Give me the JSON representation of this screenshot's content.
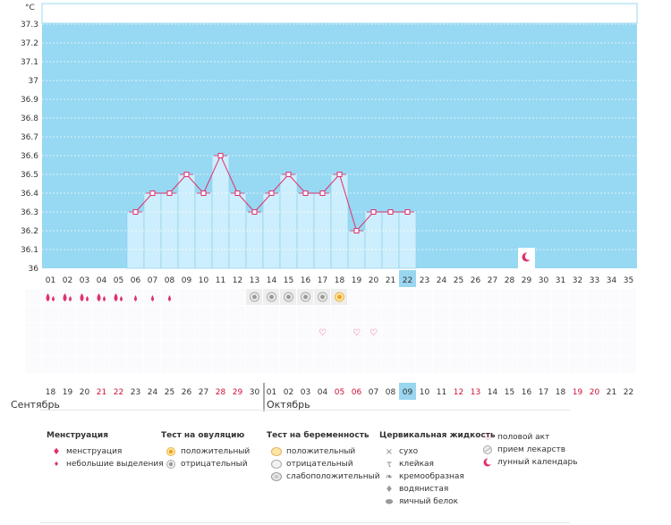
{
  "chart_data": {
    "type": "bar",
    "unit_label": "°C",
    "ylim": [
      36,
      37.35
    ],
    "yticks": [
      36,
      36.1,
      36.2,
      36.3,
      36.4,
      36.5,
      36.6,
      36.7,
      36.8,
      36.9,
      37,
      37.1,
      37.2,
      37.3
    ],
    "cycle_days": [
      "01",
      "02",
      "03",
      "04",
      "05",
      "06",
      "07",
      "08",
      "09",
      "10",
      "11",
      "12",
      "13",
      "14",
      "15",
      "16",
      "17",
      "18",
      "19",
      "20",
      "21",
      "22",
      "23",
      "24",
      "25",
      "26",
      "27",
      "28",
      "29",
      "30",
      "31",
      "32",
      "33",
      "34",
      "35"
    ],
    "dates": [
      "18",
      "19",
      "20",
      "21",
      "22",
      "23",
      "24",
      "25",
      "26",
      "27",
      "28",
      "29",
      "30",
      "01",
      "02",
      "03",
      "04",
      "05",
      "06",
      "07",
      "08",
      "09",
      "10",
      "11",
      "12",
      "13",
      "14",
      "15",
      "16",
      "17",
      "18",
      "19",
      "20",
      "21",
      "22"
    ],
    "weekend_dates_index": [
      3,
      4,
      10,
      11,
      17,
      18,
      24,
      25,
      31,
      32
    ],
    "current_day_index": 21,
    "temperatures": [
      null,
      null,
      null,
      null,
      null,
      36.3,
      36.4,
      36.4,
      36.5,
      36.4,
      36.6,
      36.4,
      36.3,
      36.4,
      36.5,
      36.4,
      36.4,
      36.5,
      36.2,
      36.3,
      36.3,
      36.3,
      null,
      null,
      null,
      null,
      null,
      null,
      null,
      null,
      null,
      null,
      null,
      null,
      null
    ],
    "moon_day_index": 28,
    "menstruation_heavy_index": [
      0,
      1,
      2,
      3,
      4
    ],
    "menstruation_light_index": [
      5,
      6,
      7
    ],
    "ovulation_negative_index": [
      12,
      13,
      14,
      15,
      16
    ],
    "ovulation_positive_index": [
      17
    ],
    "intercourse_index": [
      16,
      18,
      19
    ]
  },
  "months": {
    "first": "Сентябрь",
    "second": "Октябрь"
  },
  "legend": {
    "menstruation": {
      "title": "Менструация",
      "items": [
        "менструация",
        "небольшие выделения"
      ]
    },
    "ovulation": {
      "title": "Тест на овуляцию",
      "items": [
        "положительный",
        "отрицательный"
      ]
    },
    "pregnancy": {
      "title": "Тест на беременность",
      "items": [
        "положительный",
        "отрицательный",
        "слабоположительный"
      ]
    },
    "cervical": {
      "title": "Цервикальная жидкость",
      "items": [
        "сухо",
        "клейкая",
        "кремообразная",
        "водянистая",
        "яичный белок"
      ]
    },
    "other": {
      "items": [
        "половой акт",
        "прием лекарств",
        "лунный календарь"
      ]
    }
  },
  "colors": {
    "sky": "#97d8f2",
    "bar": "#cdeefc",
    "bar_stroke": "#8fd0ec",
    "line": "#e0306e",
    "highlight": "#9ad6f0",
    "weekend_text": "#d0103c",
    "grid_text": "#333333"
  }
}
